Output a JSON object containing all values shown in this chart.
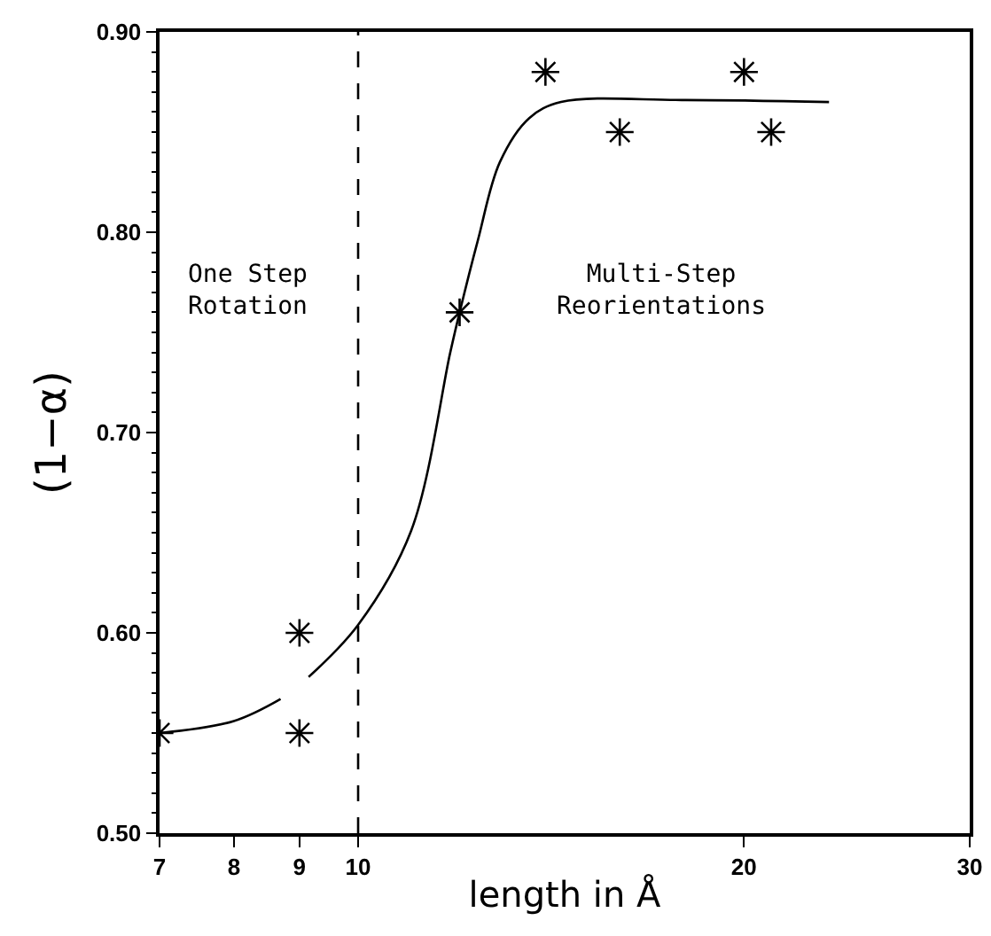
{
  "chart_data": {
    "type": "scatter",
    "xlabel": "length in Å",
    "ylabel": "(1−α)",
    "log": "x",
    "grid": false,
    "xlim": [
      7,
      30
    ],
    "xticks": [
      7,
      8,
      9,
      10,
      20,
      30
    ],
    "ylim": [
      0.5,
      0.9
    ],
    "yticks": [
      {
        "value": 0.5,
        "label": "0.50"
      },
      {
        "value": 0.6,
        "label": "0.60"
      },
      {
        "value": 0.7,
        "label": "0.70"
      },
      {
        "value": 0.8,
        "label": "0.80"
      },
      {
        "value": 0.9,
        "label": "0.90"
      }
    ],
    "series": [
      {
        "marker": "cross",
        "color": "#000000",
        "x": [
          7,
          9,
          9,
          12,
          14,
          16,
          20,
          21
        ],
        "values": [
          0.55,
          0.6,
          0.55,
          0.76,
          0.88,
          0.85,
          0.88,
          0.85
        ]
      },
      {
        "type": "line",
        "marker": "none",
        "color": "#000000",
        "line_style": "solid",
        "x": [
          7,
          8,
          8.7,
          8.9,
          9.15,
          10,
          11,
          11.8,
          12,
          12.4,
          12.9,
          13.6,
          14.4,
          17.9,
          23.3
        ],
        "values": [
          0.55,
          0.556,
          0.567,
          null,
          0.578,
          0.604,
          0.651,
          0.74,
          0.76,
          0.796,
          0.835,
          0.857,
          0.865,
          0.866,
          0.865
        ]
      }
    ],
    "ref_lines": [
      {
        "axis": "x",
        "value": 10,
        "color": "#000000",
        "line_style": "dashed"
      }
    ],
    "annotations": [
      "One Step\nRotation",
      "Multi-Step\nReorientations"
    ]
  }
}
